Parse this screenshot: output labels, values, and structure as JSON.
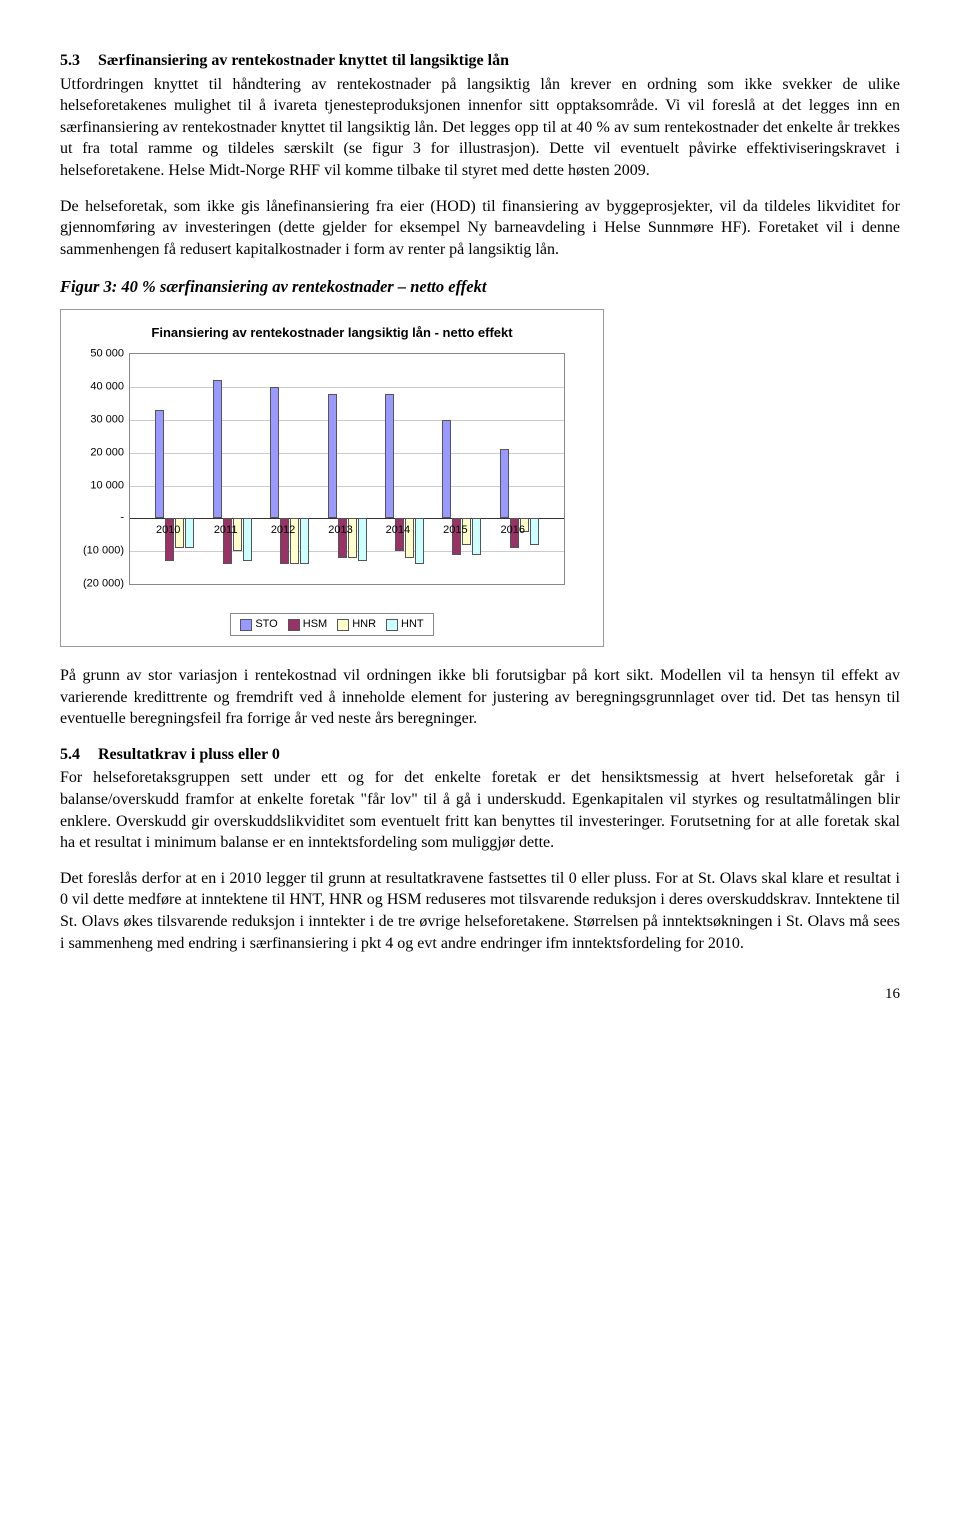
{
  "section53": {
    "num": "5.3",
    "title": "Særfinansiering av rentekostnader knyttet til langsiktige lån",
    "p1": "Utfordringen knyttet til håndtering av rentekostnader på langsiktig lån krever en ordning som ikke svekker de ulike helseforetakenes mulighet til å ivareta tjenesteproduksjonen innenfor sitt opptaksområde. Vi vil foreslå at det legges inn en særfinansiering av rentekostnader knyttet til langsiktig lån. Det legges opp til at 40 % av sum rentekostnader det enkelte år trekkes ut fra total ramme og tildeles særskilt (se figur 3 for illustrasjon). Dette vil eventuelt påvirke effektiviseringskravet i helseforetakene. Helse Midt-Norge RHF vil komme tilbake til styret med dette høsten 2009.",
    "p2": "De helseforetak, som ikke gis lånefinansiering fra eier (HOD) til finansiering av byggeprosjekter, vil da tildeles likviditet for gjennomføring av investeringen (dette gjelder for eksempel Ny barneavdeling i Helse Sunnmøre HF). Foretaket vil i denne sammenhengen få redusert kapitalkostnader i form av renter på langsiktig lån."
  },
  "figure3": {
    "caption": "Figur 3: 40 % særfinansiering av rentekostnader – netto effekt",
    "chart": {
      "type": "bar",
      "title": "Finansiering av rentekostnader langsiktig lån - netto effekt",
      "categories": [
        "2010",
        "2011",
        "2012",
        "2013",
        "2014",
        "2015",
        "2016"
      ],
      "series": [
        {
          "name": "STO",
          "color": "#9999ff",
          "values": [
            33000,
            42000,
            40000,
            38000,
            38000,
            30000,
            21000
          ]
        },
        {
          "name": "HSM",
          "color": "#993366",
          "values": [
            -13000,
            -14000,
            -14000,
            -12000,
            -10000,
            -11000,
            -9000
          ]
        },
        {
          "name": "HNR",
          "color": "#ffffcc",
          "values": [
            -9000,
            -10000,
            -14000,
            -12000,
            -12000,
            -8000,
            -4000
          ]
        },
        {
          "name": "HNT",
          "color": "#ccffff",
          "values": [
            -9000,
            -13000,
            -14000,
            -13000,
            -14000,
            -11000,
            -8000
          ]
        }
      ],
      "y_ticks": [
        50000,
        40000,
        30000,
        20000,
        10000,
        0,
        -10000,
        -20000
      ],
      "y_tick_labels": [
        "50 000",
        "40 000",
        "30 000",
        "20 000",
        "10 000",
        "-",
        "(10 000)",
        "(20 000)"
      ],
      "ymin": -20000,
      "ymax": 50000,
      "background_color": "#ffffff",
      "grid_color": "#cccccc",
      "label_fontsize": 11,
      "title_fontsize": 13
    }
  },
  "para_after_chart": "På grunn av stor variasjon i rentekostnad vil ordningen ikke bli forutsigbar på kort sikt. Modellen vil ta hensyn til effekt av varierende kredittrente og fremdrift ved å inneholde element for justering av beregningsgrunnlaget over tid. Det tas hensyn til eventuelle beregningsfeil fra forrige år ved neste års beregninger.",
  "section54": {
    "num": "5.4",
    "title": "Resultatkrav i pluss eller 0",
    "p1": "For helseforetaksgruppen sett under ett og for det enkelte foretak er det hensiktsmessig at hvert helseforetak går i balanse/overskudd framfor at enkelte foretak \"får lov\" til å gå i underskudd. Egenkapitalen vil styrkes og resultatmålingen blir enklere. Overskudd gir overskuddslikviditet som eventuelt fritt kan benyttes til investeringer. Forutsetning for at alle foretak skal ha et resultat i minimum balanse er en inntektsfordeling som muliggjør dette.",
    "p2": "Det foreslås derfor at en i 2010 legger til grunn at resultatkravene fastsettes til 0 eller pluss.  For at St. Olavs skal klare et resultat i 0 vil dette medføre at inntektene til HNT, HNR og HSM reduseres mot tilsvarende reduksjon i deres overskuddskrav. Inntektene til St. Olavs økes tilsvarende reduksjon i inntekter i de tre øvrige helseforetakene. Størrelsen på inntektsøkningen i St. Olavs må sees i sammenheng med endring i særfinansiering i pkt 4 og evt andre endringer ifm inntektsfordeling for 2010."
  },
  "page_number": "16"
}
